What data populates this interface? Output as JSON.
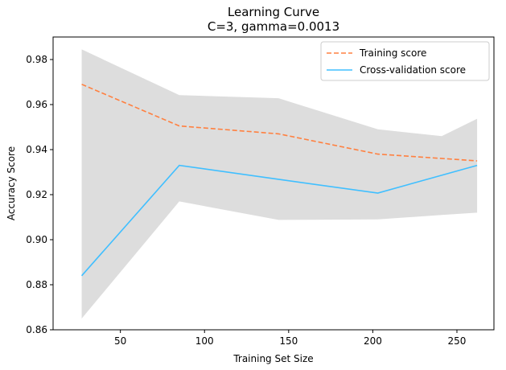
{
  "chart_data": {
    "type": "line",
    "title_line1": "Learning Curve",
    "title_line2": "C=3, gamma=0.0013",
    "xlabel": "Training Set Size",
    "ylabel": "Accuracy Score",
    "xlim": [
      10,
      272
    ],
    "ylim": [
      0.86,
      0.99
    ],
    "xticks": [
      50,
      100,
      150,
      200,
      250
    ],
    "yticks": [
      0.86,
      0.88,
      0.9,
      0.92,
      0.94,
      0.96,
      0.98
    ],
    "ytick_labels": [
      "0.86",
      "0.88",
      "0.90",
      "0.92",
      "0.94",
      "0.96",
      "0.98"
    ],
    "xtick_labels": [
      "50",
      "100",
      "150",
      "200",
      "250"
    ],
    "x": [
      27,
      85,
      144,
      203,
      262
    ],
    "legend_position": "upper right",
    "band": {
      "x": [
        27,
        85,
        144,
        203,
        241,
        262
      ],
      "upper": [
        0.9845,
        0.9642,
        0.9628,
        0.949,
        0.946,
        0.9537
      ],
      "lower": [
        0.865,
        0.917,
        0.9088,
        0.909,
        0.911,
        0.912
      ],
      "color": "#dddddd"
    },
    "series": [
      {
        "name": "Training score",
        "values": [
          0.969,
          0.9505,
          0.947,
          0.938,
          0.935
        ],
        "color": "#ff8040",
        "dash": true
      },
      {
        "name": "Cross-validation score",
        "values": [
          0.884,
          0.933,
          0.9268,
          0.9207,
          0.933
        ],
        "color": "#40bfff",
        "dash": false
      }
    ]
  }
}
